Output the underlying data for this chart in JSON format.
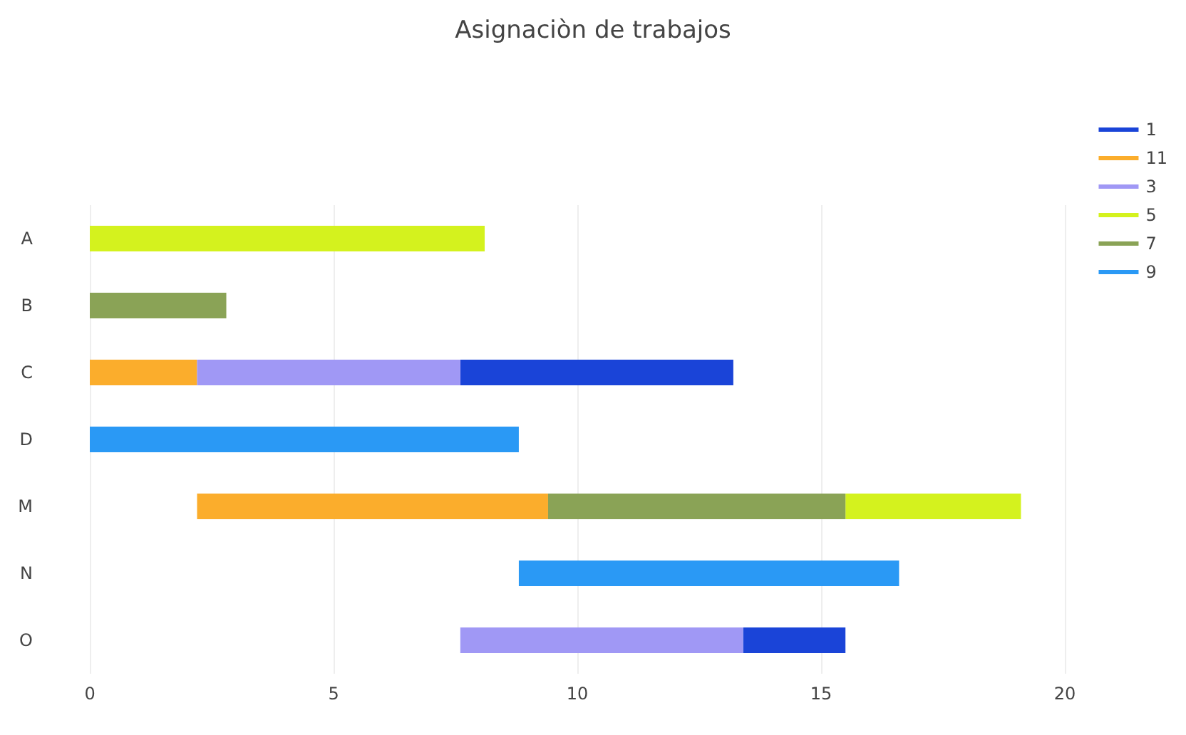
{
  "chart_data": {
    "type": "bar",
    "orientation": "horizontal",
    "title": "Asignaciòn de trabajos",
    "categories": [
      "A",
      "B",
      "C",
      "D",
      "M",
      "N",
      "O"
    ],
    "series": [
      {
        "name": "1",
        "color": "#1a44d8",
        "values": [
          null,
          null,
          5.6,
          null,
          null,
          null,
          2.1
        ],
        "base": [
          null,
          null,
          7.6,
          null,
          null,
          null,
          13.4
        ]
      },
      {
        "name": "11",
        "color": "#fbad2c",
        "values": [
          null,
          null,
          2.2,
          null,
          7.2,
          null,
          null
        ],
        "base": [
          null,
          null,
          0,
          null,
          2.2,
          null,
          null
        ]
      },
      {
        "name": "3",
        "color": "#a098f5",
        "values": [
          null,
          null,
          5.4,
          null,
          null,
          null,
          5.8
        ],
        "base": [
          null,
          null,
          2.2,
          null,
          null,
          null,
          7.6
        ]
      },
      {
        "name": "5",
        "color": "#d4f21e",
        "values": [
          8.1,
          null,
          null,
          null,
          3.6,
          null,
          null
        ],
        "base": [
          0,
          null,
          null,
          null,
          15.5,
          null,
          null
        ]
      },
      {
        "name": "7",
        "color": "#8aa356",
        "values": [
          null,
          2.8,
          null,
          null,
          6.1,
          null,
          null
        ],
        "base": [
          null,
          0,
          null,
          null,
          9.4,
          null,
          null
        ]
      },
      {
        "name": "9",
        "color": "#2a99f5",
        "values": [
          null,
          null,
          null,
          8.8,
          null,
          7.8,
          null
        ],
        "base": [
          null,
          null,
          null,
          0,
          null,
          8.8,
          null
        ]
      }
    ],
    "xlim": [
      0,
      20
    ],
    "xticks": [
      0,
      5,
      10,
      15,
      20
    ],
    "grid": "x",
    "legend": "top right"
  }
}
